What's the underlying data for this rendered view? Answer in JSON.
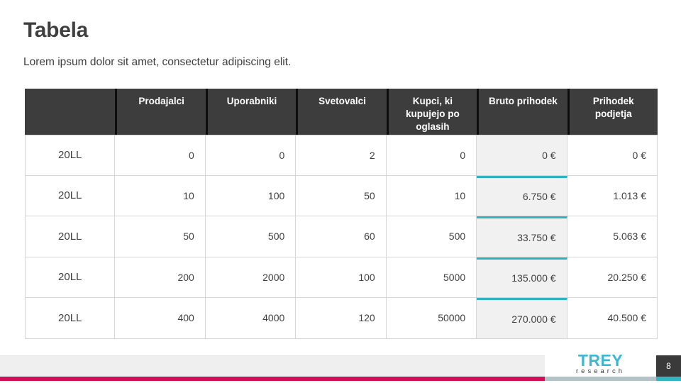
{
  "slide": {
    "title": "Tabela",
    "subtitle": "Lorem ipsum dolor sit amet, consectetur adipiscing elit.",
    "page_number": "8"
  },
  "logo": {
    "name": "TREY",
    "sub": "research"
  },
  "table": {
    "columns": [
      "",
      "Prodajalci",
      "Uporabniki",
      "Svetovalci",
      "Kupci, ki kupujejo po oglasih",
      "Bruto prihodek",
      "Prihodek podjetja"
    ],
    "rows": [
      {
        "label": "20LL",
        "values": [
          "0",
          "0",
          "2",
          "0",
          "0 €",
          "0 €"
        ]
      },
      {
        "label": "20LL",
        "values": [
          "10",
          "100",
          "50",
          "10",
          "6.750 €",
          "1.013 €"
        ]
      },
      {
        "label": "20LL",
        "values": [
          "50",
          "500",
          "60",
          "500",
          "33.750 €",
          "5.063 €"
        ]
      },
      {
        "label": "20LL",
        "values": [
          "200",
          "2000",
          "100",
          "5000",
          "135.000 €",
          "20.250 €"
        ]
      },
      {
        "label": "20LL",
        "values": [
          "400",
          "4000",
          "120",
          "50000",
          "270.000 €",
          "40.500 €"
        ]
      }
    ]
  },
  "colors": {
    "header_bg": "#3d3d3d",
    "accent_teal": "#2fb3c3",
    "accent_pink": "#cf0e5b",
    "accent_bluegray": "#b4c3ca",
    "bruto_bg": "#f1f1f1",
    "text": "#3f3f3f"
  }
}
